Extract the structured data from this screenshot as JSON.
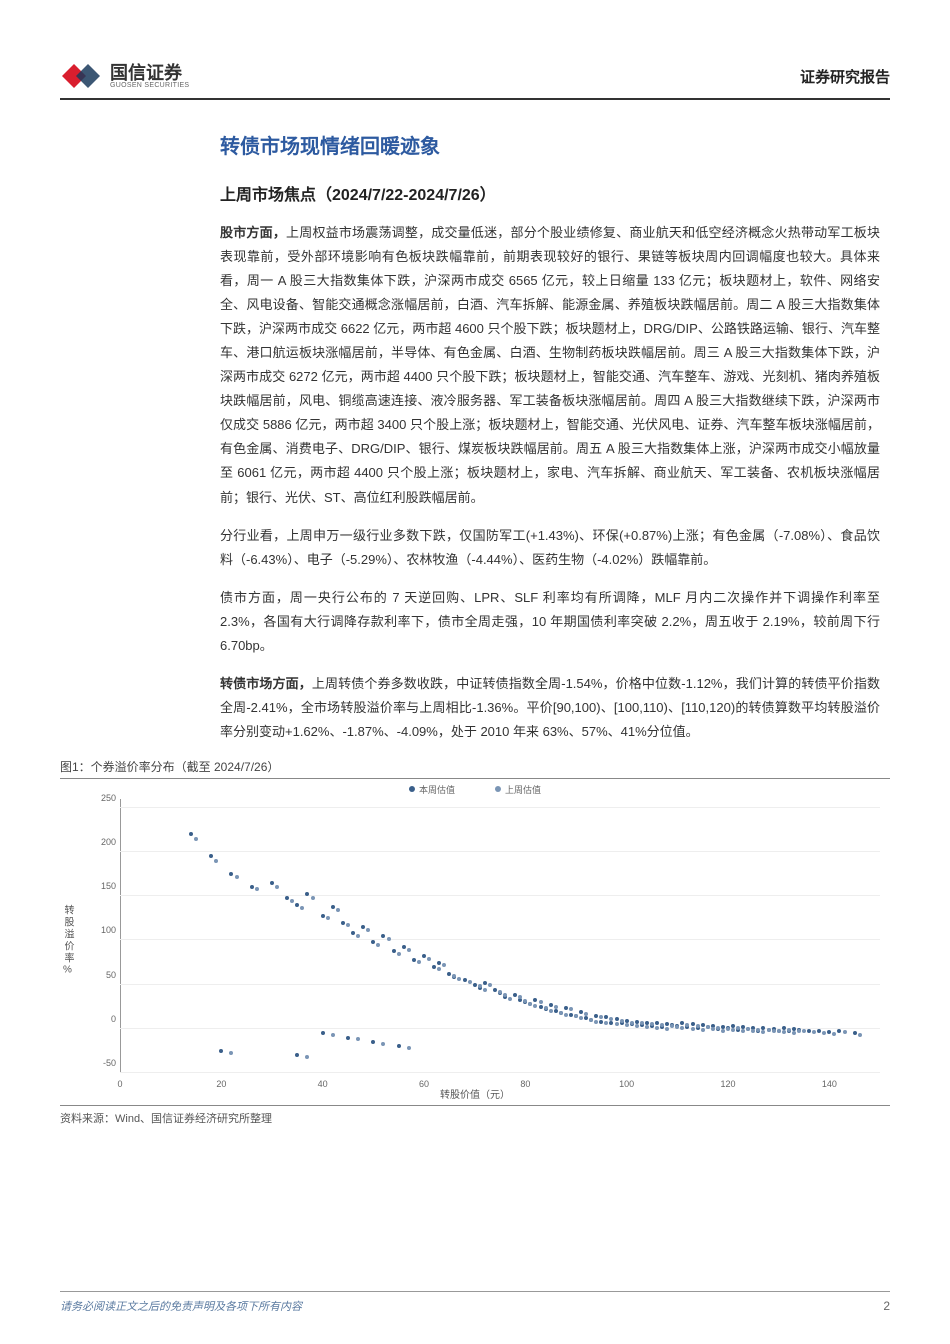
{
  "header": {
    "company_cn": "国信证券",
    "company_en": "GUOSEN SECURITIES",
    "report_type": "证券研究报告",
    "logo_red": "#d91e2e",
    "logo_navy": "#1a3a5c"
  },
  "title": {
    "main": "转债市场现情绪回暖迹象",
    "main_color": "#2d5aa0",
    "sub": "上周市场焦点（2024/7/22-2024/7/26）"
  },
  "paragraphs": {
    "p1_lead": "股市方面，",
    "p1": "上周权益市场震荡调整，成交量低迷，部分个股业绩修复、商业航天和低空经济概念火热带动军工板块表现靠前，受外部环境影响有色板块跌幅靠前，前期表现较好的银行、果链等板块周内回调幅度也较大。具体来看，周一 A 股三大指数集体下跌，沪深两市成交 6565 亿元，较上日缩量 133 亿元；板块题材上，软件、网络安全、风电设备、智能交通概念涨幅居前，白酒、汽车拆解、能源金属、养殖板块跌幅居前。周二 A 股三大指数集体下跌，沪深两市成交 6622 亿元，两市超 4600 只个股下跌；板块题材上，DRG/DIP、公路铁路运输、银行、汽车整车、港口航运板块涨幅居前，半导体、有色金属、白酒、生物制药板块跌幅居前。周三 A 股三大指数集体下跌，沪深两市成交 6272 亿元，两市超 4400 只个股下跌；板块题材上，智能交通、汽车整车、游戏、光刻机、猪肉养殖板块跌幅居前，风电、铜缆高速连接、液冷服务器、军工装备板块涨幅居前。周四 A 股三大指数继续下跌，沪深两市仅成交 5886 亿元，两市超 3400 只个股上涨；板块题材上，智能交通、光伏风电、证券、汽车整车板块涨幅居前，有色金属、消费电子、DRG/DIP、银行、煤炭板块跌幅居前。周五 A 股三大指数集体上涨，沪深两市成交小幅放量至 6061 亿元，两市超 4400 只个股上涨；板块题材上，家电、汽车拆解、商业航天、军工装备、农机板块涨幅居前；银行、光伏、ST、高位红利股跌幅居前。",
    "p2": "分行业看，上周申万一级行业多数下跌，仅国防军工(+1.43%)、环保(+0.87%)上涨；有色金属（-7.08%）、食品饮料（-6.43%）、电子（-5.29%）、农林牧渔（-4.44%）、医药生物（-4.02%）跌幅靠前。",
    "p3": "债市方面，周一央行公布的 7 天逆回购、LPR、SLF 利率均有所调降，MLF 月内二次操作并下调操作利率至 2.3%，各国有大行调降存款利率下，债市全周走强，10 年期国债利率突破 2.2%，周五收于 2.19%，较前周下行 6.70bp。",
    "p4_lead": "转债市场方面，",
    "p4": "上周转债个券多数收跌，中证转债指数全周-1.54%，价格中位数-1.12%，我们计算的转债平价指数全周-2.41%，全市场转股溢价率与上周相比-1.36%。平价[90,100)、[100,110)、[110,120)的转债算数平均转股溢价率分别变动+1.62%、-1.87%、-4.09%，处于 2010 年来 63%、57%、41%分位值。"
  },
  "figure": {
    "caption": "图1：个券溢价率分布（截至 2024/7/26）",
    "source": "资料来源：Wind、国信证券经济研究所整理",
    "type": "scatter",
    "xlabel": "转股价值（元）",
    "ylabel": "转股溢价率%",
    "xlim": [
      0,
      150
    ],
    "ylim": [
      -50,
      260
    ],
    "xticks": [
      0,
      20,
      40,
      60,
      80,
      100,
      120,
      140
    ],
    "yticks": [
      -50,
      0,
      50,
      100,
      150,
      200,
      250
    ],
    "background_color": "#ffffff",
    "grid_color": "#eeeeee",
    "legend": [
      {
        "label": "本周估值",
        "color": "#3a5f8a"
      },
      {
        "label": "上周估值",
        "color": "#7a95b5"
      }
    ],
    "series": [
      {
        "color": "#3a5f8a",
        "points": [
          [
            14,
            220
          ],
          [
            18,
            195
          ],
          [
            22,
            175
          ],
          [
            26,
            160
          ],
          [
            30,
            165
          ],
          [
            33,
            148
          ],
          [
            35,
            140
          ],
          [
            37,
            152
          ],
          [
            40,
            128
          ],
          [
            42,
            138
          ],
          [
            44,
            120
          ],
          [
            46,
            108
          ],
          [
            48,
            115
          ],
          [
            50,
            98
          ],
          [
            52,
            105
          ],
          [
            54,
            88
          ],
          [
            56,
            92
          ],
          [
            58,
            78
          ],
          [
            60,
            82
          ],
          [
            62,
            70
          ],
          [
            63,
            74
          ],
          [
            65,
            62
          ],
          [
            66,
            58
          ],
          [
            68,
            55
          ],
          [
            70,
            50
          ],
          [
            71,
            46
          ],
          [
            72,
            52
          ],
          [
            74,
            44
          ],
          [
            75,
            40
          ],
          [
            76,
            36
          ],
          [
            78,
            38
          ],
          [
            79,
            33
          ],
          [
            80,
            30
          ],
          [
            81,
            28
          ],
          [
            82,
            32
          ],
          [
            83,
            25
          ],
          [
            84,
            22
          ],
          [
            85,
            27
          ],
          [
            86,
            20
          ],
          [
            87,
            18
          ],
          [
            88,
            24
          ],
          [
            89,
            16
          ],
          [
            90,
            14
          ],
          [
            91,
            19
          ],
          [
            92,
            12
          ],
          [
            93,
            10
          ],
          [
            94,
            15
          ],
          [
            95,
            8
          ],
          [
            96,
            13
          ],
          [
            97,
            7
          ],
          [
            98,
            11
          ],
          [
            99,
            6
          ],
          [
            100,
            9
          ],
          [
            101,
            5
          ],
          [
            102,
            8
          ],
          [
            103,
            4
          ],
          [
            104,
            7
          ],
          [
            105,
            3
          ],
          [
            106,
            6
          ],
          [
            107,
            2
          ],
          [
            108,
            5
          ],
          [
            109,
            4
          ],
          [
            110,
            3
          ],
          [
            111,
            6
          ],
          [
            112,
            2
          ],
          [
            113,
            5
          ],
          [
            114,
            1
          ],
          [
            115,
            4
          ],
          [
            116,
            2
          ],
          [
            117,
            3
          ],
          [
            118,
            0
          ],
          [
            119,
            2
          ],
          [
            120,
            1
          ],
          [
            121,
            3
          ],
          [
            122,
            -1
          ],
          [
            123,
            2
          ],
          [
            124,
            0
          ],
          [
            125,
            1
          ],
          [
            126,
            -2
          ],
          [
            127,
            1
          ],
          [
            128,
            -1
          ],
          [
            129,
            0
          ],
          [
            130,
            -2
          ],
          [
            131,
            1
          ],
          [
            132,
            -3
          ],
          [
            133,
            0
          ],
          [
            134,
            -1
          ],
          [
            136,
            -2
          ],
          [
            138,
            -3
          ],
          [
            140,
            -4
          ],
          [
            142,
            -2
          ],
          [
            145,
            -5
          ],
          [
            45,
            -10
          ],
          [
            50,
            -15
          ],
          [
            55,
            -20
          ],
          [
            20,
            -25
          ],
          [
            35,
            -30
          ],
          [
            40,
            -5
          ]
        ]
      },
      {
        "color": "#7a95b5",
        "points": [
          [
            15,
            215
          ],
          [
            19,
            190
          ],
          [
            23,
            172
          ],
          [
            27,
            158
          ],
          [
            31,
            160
          ],
          [
            34,
            145
          ],
          [
            36,
            137
          ],
          [
            38,
            148
          ],
          [
            41,
            125
          ],
          [
            43,
            134
          ],
          [
            45,
            117
          ],
          [
            47,
            105
          ],
          [
            49,
            112
          ],
          [
            51,
            95
          ],
          [
            53,
            102
          ],
          [
            55,
            85
          ],
          [
            57,
            89
          ],
          [
            59,
            76
          ],
          [
            61,
            79
          ],
          [
            63,
            68
          ],
          [
            64,
            72
          ],
          [
            66,
            60
          ],
          [
            67,
            56
          ],
          [
            69,
            53
          ],
          [
            71,
            48
          ],
          [
            72,
            44
          ],
          [
            73,
            50
          ],
          [
            75,
            42
          ],
          [
            76,
            38
          ],
          [
            77,
            34
          ],
          [
            79,
            36
          ],
          [
            80,
            31
          ],
          [
            81,
            28
          ],
          [
            82,
            26
          ],
          [
            83,
            30
          ],
          [
            84,
            23
          ],
          [
            85,
            20
          ],
          [
            86,
            25
          ],
          [
            87,
            18
          ],
          [
            88,
            16
          ],
          [
            89,
            22
          ],
          [
            90,
            14
          ],
          [
            91,
            12
          ],
          [
            92,
            17
          ],
          [
            93,
            10
          ],
          [
            94,
            8
          ],
          [
            95,
            13
          ],
          [
            96,
            6
          ],
          [
            97,
            11
          ],
          [
            98,
            5
          ],
          [
            99,
            9
          ],
          [
            100,
            4
          ],
          [
            101,
            7
          ],
          [
            102,
            3
          ],
          [
            103,
            6
          ],
          [
            104,
            2
          ],
          [
            105,
            5
          ],
          [
            106,
            1
          ],
          [
            107,
            4
          ],
          [
            108,
            0
          ],
          [
            109,
            3
          ],
          [
            110,
            2
          ],
          [
            111,
            1
          ],
          [
            112,
            4
          ],
          [
            113,
            0
          ],
          [
            114,
            3
          ],
          [
            115,
            -1
          ],
          [
            116,
            2
          ],
          [
            117,
            0
          ],
          [
            118,
            1
          ],
          [
            119,
            -2
          ],
          [
            120,
            0
          ],
          [
            121,
            -1
          ],
          [
            122,
            1
          ],
          [
            123,
            -3
          ],
          [
            124,
            0
          ],
          [
            125,
            -2
          ],
          [
            126,
            -1
          ],
          [
            127,
            -4
          ],
          [
            128,
            -1
          ],
          [
            129,
            -3
          ],
          [
            130,
            -2
          ],
          [
            131,
            -4
          ],
          [
            132,
            -1
          ],
          [
            133,
            -5
          ],
          [
            134,
            -2
          ],
          [
            135,
            -3
          ],
          [
            137,
            -4
          ],
          [
            139,
            -5
          ],
          [
            141,
            -6
          ],
          [
            143,
            -4
          ],
          [
            146,
            -7
          ],
          [
            47,
            -12
          ],
          [
            52,
            -17
          ],
          [
            57,
            -22
          ],
          [
            22,
            -27
          ],
          [
            37,
            -32
          ],
          [
            42,
            -7
          ]
        ]
      }
    ]
  },
  "footer": {
    "disclaimer": "请务必阅读正文之后的免责声明及各项下所有内容",
    "page": "2"
  }
}
